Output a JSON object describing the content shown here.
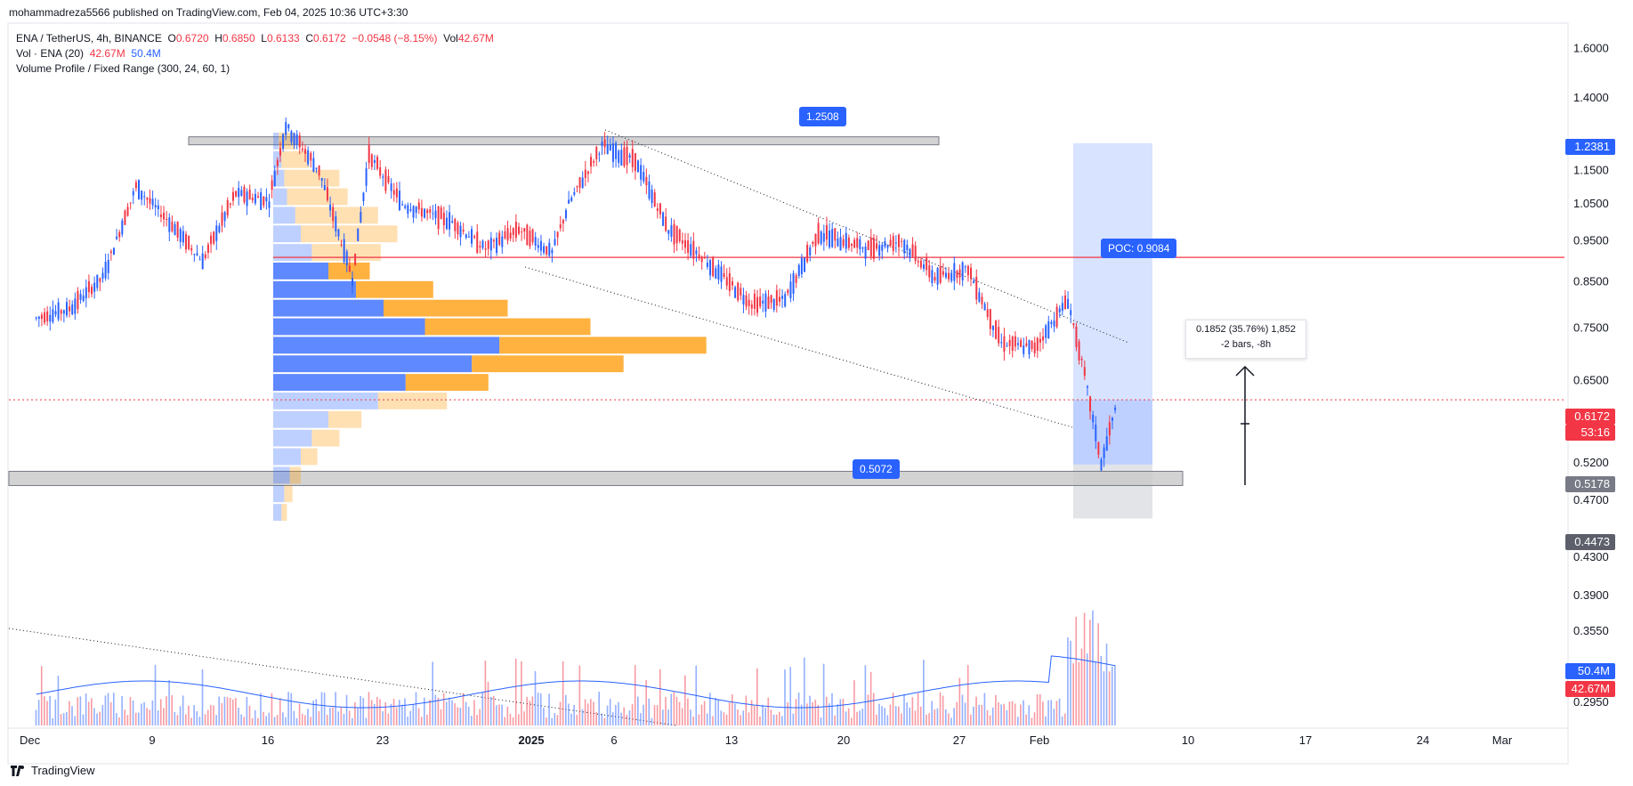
{
  "publisher": "mohammadreza5566 published on TradingView.com, Feb 04, 2025 10:36 UTC+3:30",
  "legend": {
    "symbol": "ENA / TetherUS, 4h, BINANCE",
    "o_label": "O",
    "o_val": "0.6720",
    "h_label": "H",
    "h_val": "0.6850",
    "l_label": "L",
    "l_val": "0.6133",
    "c_label": "C",
    "c_val": "0.6172",
    "change": "−0.0548 (−8.15%)",
    "vol_label": "Vol",
    "vol_val": "42.67M",
    "vol_ind": "Vol · ENA (20)",
    "vol_ind_v1": "42.67M",
    "vol_ind_v2": "50.4M",
    "vp": "Volume Profile / Fixed Range (300, 24, 60, 1)"
  },
  "callouts": {
    "top": "1.2508",
    "bottom": "0.5072",
    "poc": "POC: 0.9084"
  },
  "measure": {
    "line1": "0.1852 (35.76%) 1,852",
    "line2": "-2 bars, -8h"
  },
  "tags": {
    "target": "1.2381",
    "last_price": "0.6172",
    "countdown": "53:16",
    "zone_top": "0.5178",
    "stop": "0.4473",
    "vol_ma": "50.4M",
    "vol_last": "42.67M"
  },
  "colors": {
    "up": "#2962ff",
    "down": "#f23645",
    "poc": "#f23645",
    "zone_fill": "#c8c8c8",
    "profile_up": "#2962ff",
    "profile_down": "#ff9800"
  },
  "brand": "TradingView",
  "chart_data": {
    "type": "candlestick",
    "title": "ENA / TetherUS, 4h, BINANCE",
    "y_axis": {
      "scale": "log",
      "ticks": [
        "1.6000",
        "1.4000",
        "1.1500",
        "1.0500",
        "0.9500",
        "0.8500",
        "0.7500",
        "0.6500",
        "0.5200",
        "0.4700",
        "0.4300",
        "0.3900",
        "0.3550",
        "0.2950"
      ]
    },
    "x_axis": {
      "ticks": [
        "Dec",
        "9",
        "16",
        "23",
        "2025",
        "6",
        "13",
        "20",
        "27",
        "Feb",
        "10",
        "17",
        "24",
        "Mar"
      ]
    },
    "price_path": [
      {
        "date": "2024-12-01",
        "close": 0.77
      },
      {
        "date": "2024-12-03",
        "close": 0.79
      },
      {
        "date": "2024-12-05",
        "close": 0.86
      },
      {
        "date": "2024-12-07",
        "close": 1.1
      },
      {
        "date": "2024-12-09",
        "close": 1.0
      },
      {
        "date": "2024-12-11",
        "close": 0.9
      },
      {
        "date": "2024-12-13",
        "close": 1.08
      },
      {
        "date": "2024-12-15",
        "close": 1.06
      },
      {
        "date": "2024-12-16",
        "close": 1.3
      },
      {
        "date": "2024-12-18",
        "close": 1.15
      },
      {
        "date": "2024-12-20",
        "close": 0.86
      },
      {
        "date": "2024-12-21",
        "close": 1.2
      },
      {
        "date": "2024-12-23",
        "close": 1.05
      },
      {
        "date": "2024-12-26",
        "close": 1.0
      },
      {
        "date": "2024-12-28",
        "close": 0.93
      },
      {
        "date": "2024-12-30",
        "close": 0.98
      },
      {
        "date": "2025-01-01",
        "close": 0.92
      },
      {
        "date": "2025-01-02",
        "close": 1.05
      },
      {
        "date": "2025-01-04",
        "close": 1.23
      },
      {
        "date": "2025-01-06",
        "close": 1.18
      },
      {
        "date": "2025-01-08",
        "close": 0.98
      },
      {
        "date": "2025-01-10",
        "close": 0.91
      },
      {
        "date": "2025-01-13",
        "close": 0.8
      },
      {
        "date": "2025-01-15",
        "close": 0.81
      },
      {
        "date": "2025-01-17",
        "close": 0.97
      },
      {
        "date": "2025-01-20",
        "close": 0.93
      },
      {
        "date": "2025-01-22",
        "close": 0.95
      },
      {
        "date": "2025-01-24",
        "close": 0.86
      },
      {
        "date": "2025-01-26",
        "close": 0.88
      },
      {
        "date": "2025-01-28",
        "close": 0.72
      },
      {
        "date": "2025-01-30",
        "close": 0.71
      },
      {
        "date": "2025-02-01",
        "close": 0.81
      },
      {
        "date": "2025-02-02",
        "close": 0.66
      },
      {
        "date": "2025-02-03",
        "close": 0.52
      },
      {
        "date": "2025-02-04",
        "close": 0.6172
      }
    ],
    "levels": {
      "poc": 0.9084,
      "resistance_zone": 1.2508,
      "support_zone": 0.5072,
      "target": 1.2381,
      "entry": 0.6172,
      "stop": 0.4473
    },
    "volume": {
      "last": "42.67M",
      "ma20": "50.4M"
    }
  }
}
